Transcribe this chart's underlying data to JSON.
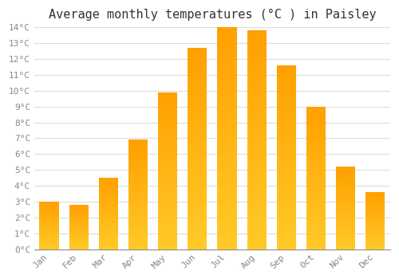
{
  "months": [
    "Jan",
    "Feb",
    "Mar",
    "Apr",
    "May",
    "Jun",
    "Jul",
    "Aug",
    "Sep",
    "Oct",
    "Nov",
    "Dec"
  ],
  "values": [
    3.0,
    2.8,
    4.5,
    6.9,
    9.9,
    12.7,
    14.0,
    13.8,
    11.6,
    9.0,
    5.2,
    3.6
  ],
  "bar_color_light": "#FFCA28",
  "bar_color_dark": "#FFA000",
  "title": "Average monthly temperatures (°C ) in Paisley",
  "ylim": [
    0,
    14
  ],
  "ytick_max": 14,
  "ytick_step": 1,
  "background_color": "#FFFFFF",
  "plot_bg_color": "#FFFFFF",
  "grid_color": "#DDDDDD",
  "title_fontsize": 11,
  "tick_fontsize": 8,
  "tick_color": "#888888",
  "font_family": "monospace"
}
